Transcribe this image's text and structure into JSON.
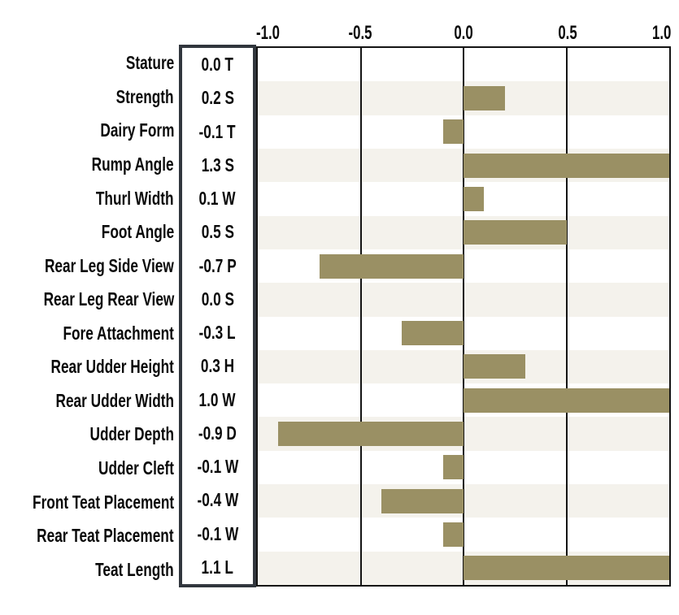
{
  "chart_data": {
    "type": "bar",
    "orientation": "horizontal",
    "title": "",
    "xlabel": "",
    "ylabel": "",
    "axis": {
      "min": -1.0,
      "max": 1.0,
      "ticks": [
        "-1.0",
        "-0.5",
        "0.0",
        "0.5",
        "1.0"
      ],
      "grid": "vertical lines at -0.5, 0.0, 0.5"
    },
    "bar_color": "#9a9064",
    "stripe_color": "#f4f2ec",
    "box_border_color": "#31363d",
    "rows": [
      {
        "trait": "Stature",
        "value": 0.0,
        "value_label": "0.0 T"
      },
      {
        "trait": "Strength",
        "value": 0.2,
        "value_label": "0.2 S"
      },
      {
        "trait": "Dairy Form",
        "value": -0.1,
        "value_label": "-0.1 T"
      },
      {
        "trait": "Rump Angle",
        "value": 1.3,
        "value_label": "1.3 S"
      },
      {
        "trait": "Thurl Width",
        "value": 0.1,
        "value_label": "0.1 W"
      },
      {
        "trait": "Foot Angle",
        "value": 0.5,
        "value_label": "0.5 S"
      },
      {
        "trait": "Rear Leg Side View",
        "value": -0.7,
        "value_label": "-0.7 P"
      },
      {
        "trait": "Rear Leg Rear View",
        "value": 0.0,
        "value_label": "0.0 S"
      },
      {
        "trait": "Fore Attachment",
        "value": -0.3,
        "value_label": "-0.3 L"
      },
      {
        "trait": "Rear Udder Height",
        "value": 0.3,
        "value_label": "0.3 H"
      },
      {
        "trait": "Rear Udder Width",
        "value": 1.0,
        "value_label": "1.0 W"
      },
      {
        "trait": "Udder Depth",
        "value": -0.9,
        "value_label": "-0.9 D"
      },
      {
        "trait": "Udder Cleft",
        "value": -0.1,
        "value_label": "-0.1 W"
      },
      {
        "trait": "Front Teat Placement",
        "value": -0.4,
        "value_label": "-0.4 W"
      },
      {
        "trait": "Rear Teat Placement",
        "value": -0.1,
        "value_label": "-0.1 W"
      },
      {
        "trait": "Teat Length",
        "value": 1.1,
        "value_label": "1.1 L"
      }
    ]
  }
}
